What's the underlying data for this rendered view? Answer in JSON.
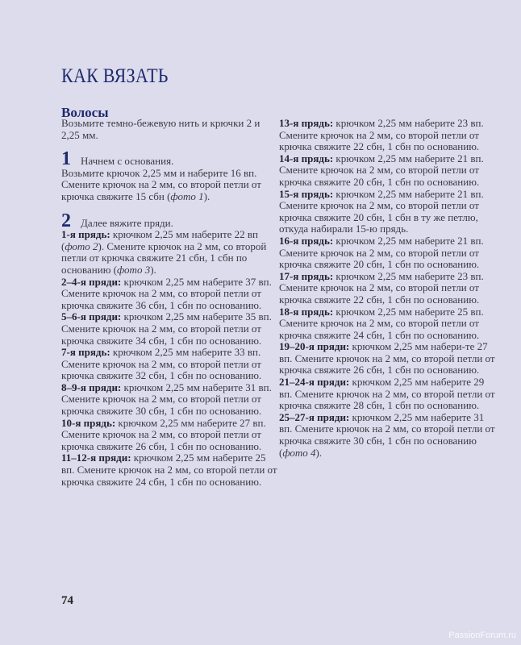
{
  "header": {
    "title": "КАК ВЯЗАТЬ",
    "section": "Волосы"
  },
  "intro": "Возьмите темно-бежевую нить и крючки 2 и 2,25 мм.",
  "steps": [
    {
      "number": "1",
      "lead": "Начнем с основания.",
      "segments": [
        {
          "t": "Возьмите крючок 2,25 мм и наберите 16 вп. Смените крючок на 2 мм, со второй петли от крючка свяжите 15 сбн ("
        },
        {
          "i": "фото 1"
        },
        {
          "t": ")."
        }
      ]
    },
    {
      "number": "2",
      "lead": "Далее вяжите пряди.",
      "segments": []
    }
  ],
  "strands_left": [
    {
      "label": "1-я прядь:",
      "segments": [
        {
          "t": " крючком 2,25 мм наберите 22 вп ("
        },
        {
          "i": "фото 2"
        },
        {
          "t": "). Смените крючок на 2 мм, со второй петли от крючка свяжите 21 сбн, 1 сбн по основанию ("
        },
        {
          "i": "фото 3"
        },
        {
          "t": ")."
        }
      ]
    },
    {
      "label": "2–4-я пряди:",
      "segments": [
        {
          "t": " крючком 2,25 мм наберите 37 вп. Смените крючок на 2 мм, со второй петли от крючка свяжите 36 сбн, 1 сбн по основанию."
        }
      ]
    },
    {
      "label": "5–6-я пряди:",
      "segments": [
        {
          "t": " крючком 2,25 мм наберите 35 вп. Смените крючок на 2 мм, со второй петли от крючка свяжите 34 сбн, 1 сбн по основанию."
        }
      ]
    },
    {
      "label": "7-я прядь:",
      "segments": [
        {
          "t": " крючком 2,25 мм наберите 33 вп. Смените крючок на 2 мм, со второй петли от крючка свяжите 32 сбн, 1 сбн по основанию."
        }
      ]
    },
    {
      "label": "8–9-я пряди:",
      "segments": [
        {
          "t": " крючком 2,25 мм наберите 31 вп. Смените крючок на 2 мм, со второй петли от крючка свяжите 30 сбн, 1 сбн по основанию."
        }
      ]
    },
    {
      "label": "10-я прядь:",
      "segments": [
        {
          "t": " крючком 2,25 мм наберите 27 вп. Смените крючок на 2 мм, со второй петли от крючка свяжите 26 сбн, 1 сбн по основанию."
        }
      ]
    },
    {
      "label": "11–12-я пряди:",
      "segments": [
        {
          "t": " крючком 2,25 мм наберите 25 вп. Смените крючок на 2 мм, со второй петли от крючка свяжите 24 сбн, 1 сбн по основанию."
        }
      ]
    }
  ],
  "strands_right": [
    {
      "label": "13-я прядь:",
      "segments": [
        {
          "t": " крючком 2,25 мм наберите 23 вп. Смените крючок на 2 мм, со второй петли от крючка свяжите 22 сбн, 1 сбн по основанию."
        }
      ]
    },
    {
      "label": "14-я прядь:",
      "segments": [
        {
          "t": " крючком 2,25 мм наберите 21 вп. Смените крючок на 2 мм, со второй петли от крючка свяжите 20 сбн, 1 сбн по основанию."
        }
      ]
    },
    {
      "label": "15-я прядь:",
      "segments": [
        {
          "t": " крючком 2,25 мм наберите 21 вп. Смените крючок на 2 мм, со второй петли от крючка свяжите 20 сбн, 1 сбн в ту же петлю, откуда набирали 15-ю прядь."
        }
      ]
    },
    {
      "label": "16-я прядь:",
      "segments": [
        {
          "t": " крючком 2,25 мм наберите 21 вп. Смените крючок на 2 мм, со второй петли от крючка свяжите 20 сбн, 1 сбн по основанию."
        }
      ]
    },
    {
      "label": "17-я прядь:",
      "segments": [
        {
          "t": " крючком 2,25 мм наберите 23 вп. Смените крючок на 2 мм, со второй петли от крючка свяжите 22 сбн, 1 сбн по основанию."
        }
      ]
    },
    {
      "label": "18-я прядь:",
      "segments": [
        {
          "t": " крючком 2,25 мм наберите 25 вп. Смените крючок на 2 мм, со второй петли от крючка свяжите 24 сбн, 1 сбн по основанию."
        }
      ]
    },
    {
      "label": "19–20-я пряди:",
      "segments": [
        {
          "t": " крючком 2,25 мм набери-те 27 вп. Смените крючок на 2 мм, со второй петли от крючка свяжите 26 сбн, 1 сбн по основанию."
        }
      ]
    },
    {
      "label": "21–24-я пряди:",
      "segments": [
        {
          "t": " крючком 2,25 мм наберите 29 вп. Смените крючок на 2 мм, со второй петли от крючка свяжите 28 сбн, 1 сбн по основанию."
        }
      ]
    },
    {
      "label": "25–27-я пряди:",
      "segments": [
        {
          "t": " крючком 2,25 мм наберите 31 вп. Смените крючок на 2 мм, со второй петли от крючка свяжите 30 сбн, 1 сбн по основанию ("
        },
        {
          "i": "фото 4"
        },
        {
          "t": ")."
        }
      ]
    }
  ],
  "footer": {
    "page_number": "74",
    "watermark": "PassionForum.ru"
  },
  "colors": {
    "background": "#dcdcec",
    "heading": "#1f2a6e",
    "text": "#3a3a44"
  }
}
